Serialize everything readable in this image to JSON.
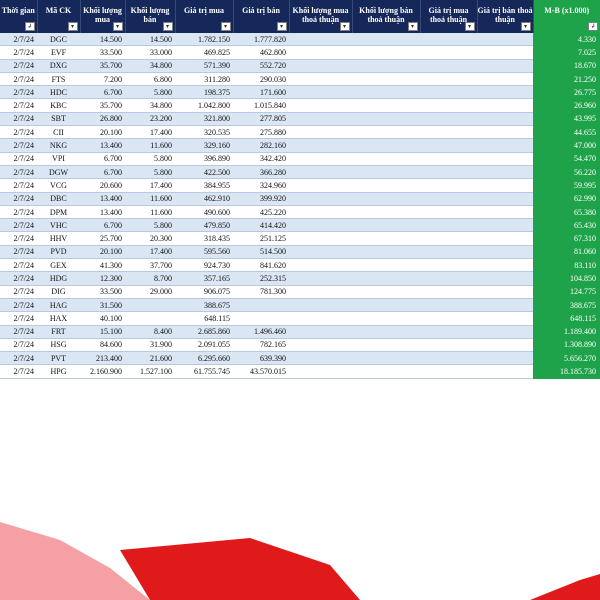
{
  "headers": {
    "time": "Thời gian",
    "ticker": "Mã CK",
    "buy_volume": "Khối lượng mua",
    "sell_volume": "Khối lượng bán",
    "buy_value": "Giá trị mua",
    "sell_value": "Giá trị bán",
    "buy_volume_deal": "Khối lượng mua thoả thuận",
    "sell_volume_deal": "Khối lượng bán thoả thuận",
    "buy_value_deal": "Giá trị mua thoả thuận",
    "sell_value_deal": "Giá trị bán thoả thuận",
    "mb": "M-B (x1.000)",
    "filter_glyph": "▾",
    "sort_glyph": "↲"
  },
  "rows": [
    {
      "date": "2/7/24",
      "ticker": "DGC",
      "buy_vol": "14.500",
      "sell_vol": "14.500",
      "buy_val": "1.782.150",
      "sell_val": "1.777.820",
      "mb": "4.330"
    },
    {
      "date": "2/7/24",
      "ticker": "EVF",
      "buy_vol": "33.500",
      "sell_vol": "33.000",
      "buy_val": "469.825",
      "sell_val": "462.800",
      "mb": "7.025"
    },
    {
      "date": "2/7/24",
      "ticker": "DXG",
      "buy_vol": "35.700",
      "sell_vol": "34.800",
      "buy_val": "571.390",
      "sell_val": "552.720",
      "mb": "18.670"
    },
    {
      "date": "2/7/24",
      "ticker": "FTS",
      "buy_vol": "7.200",
      "sell_vol": "6.800",
      "buy_val": "311.280",
      "sell_val": "290.030",
      "mb": "21.250"
    },
    {
      "date": "2/7/24",
      "ticker": "HDC",
      "buy_vol": "6.700",
      "sell_vol": "5.800",
      "buy_val": "198.375",
      "sell_val": "171.600",
      "mb": "26.775"
    },
    {
      "date": "2/7/24",
      "ticker": "KBC",
      "buy_vol": "35.700",
      "sell_vol": "34.800",
      "buy_val": "1.042.800",
      "sell_val": "1.015.840",
      "mb": "26.960"
    },
    {
      "date": "2/7/24",
      "ticker": "SBT",
      "buy_vol": "26.800",
      "sell_vol": "23.200",
      "buy_val": "321.800",
      "sell_val": "277.805",
      "mb": "43.995"
    },
    {
      "date": "2/7/24",
      "ticker": "CII",
      "buy_vol": "20.100",
      "sell_vol": "17.400",
      "buy_val": "320.535",
      "sell_val": "275.880",
      "mb": "44.655"
    },
    {
      "date": "2/7/24",
      "ticker": "NKG",
      "buy_vol": "13.400",
      "sell_vol": "11.600",
      "buy_val": "329.160",
      "sell_val": "282.160",
      "mb": "47.000"
    },
    {
      "date": "2/7/24",
      "ticker": "VPI",
      "buy_vol": "6.700",
      "sell_vol": "5.800",
      "buy_val": "396.890",
      "sell_val": "342.420",
      "mb": "54.470"
    },
    {
      "date": "2/7/24",
      "ticker": "DGW",
      "buy_vol": "6.700",
      "sell_vol": "5.800",
      "buy_val": "422.500",
      "sell_val": "366.280",
      "mb": "56.220"
    },
    {
      "date": "2/7/24",
      "ticker": "VCG",
      "buy_vol": "20.600",
      "sell_vol": "17.400",
      "buy_val": "384.955",
      "sell_val": "324.960",
      "mb": "59.995"
    },
    {
      "date": "2/7/24",
      "ticker": "DBC",
      "buy_vol": "13.400",
      "sell_vol": "11.600",
      "buy_val": "462.910",
      "sell_val": "399.920",
      "mb": "62.990"
    },
    {
      "date": "2/7/24",
      "ticker": "DPM",
      "buy_vol": "13.400",
      "sell_vol": "11.600",
      "buy_val": "490.600",
      "sell_val": "425.220",
      "mb": "65.380"
    },
    {
      "date": "2/7/24",
      "ticker": "VHC",
      "buy_vol": "6.700",
      "sell_vol": "5.800",
      "buy_val": "479.850",
      "sell_val": "414.420",
      "mb": "65.430"
    },
    {
      "date": "2/7/24",
      "ticker": "HHV",
      "buy_vol": "25.700",
      "sell_vol": "20.300",
      "buy_val": "318.435",
      "sell_val": "251.125",
      "mb": "67.310"
    },
    {
      "date": "2/7/24",
      "ticker": "PVD",
      "buy_vol": "20.100",
      "sell_vol": "17.400",
      "buy_val": "595.560",
      "sell_val": "514.500",
      "mb": "81.060"
    },
    {
      "date": "2/7/24",
      "ticker": "GEX",
      "buy_vol": "41.300",
      "sell_vol": "37.700",
      "buy_val": "924.730",
      "sell_val": "841.620",
      "mb": "83.110"
    },
    {
      "date": "2/7/24",
      "ticker": "HDG",
      "buy_vol": "12.300",
      "sell_vol": "8.700",
      "buy_val": "357.165",
      "sell_val": "252.315",
      "mb": "104.850"
    },
    {
      "date": "2/7/24",
      "ticker": "DIG",
      "buy_vol": "33.500",
      "sell_vol": "29.000",
      "buy_val": "906.075",
      "sell_val": "781.300",
      "mb": "124.775"
    },
    {
      "date": "2/7/24",
      "ticker": "HAG",
      "buy_vol": "31.500",
      "sell_vol": "",
      "buy_val": "388.675",
      "sell_val": "",
      "mb": "388.675"
    },
    {
      "date": "2/7/24",
      "ticker": "HAX",
      "buy_vol": "40.100",
      "sell_vol": "",
      "buy_val": "648.115",
      "sell_val": "",
      "mb": "648.115"
    },
    {
      "date": "2/7/24",
      "ticker": "FRT",
      "buy_vol": "15.100",
      "sell_vol": "8.400",
      "buy_val": "2.685.860",
      "sell_val": "1.496.460",
      "mb": "1.189.400"
    },
    {
      "date": "2/7/24",
      "ticker": "HSG",
      "buy_vol": "84.600",
      "sell_vol": "31.900",
      "buy_val": "2.091.055",
      "sell_val": "782.165",
      "mb": "1.308.890"
    },
    {
      "date": "2/7/24",
      "ticker": "PVT",
      "buy_vol": "213.400",
      "sell_vol": "21.600",
      "buy_val": "6.295.660",
      "sell_val": "639.390",
      "mb": "5.656.270"
    },
    {
      "date": "2/7/24",
      "ticker": "HPG",
      "buy_vol": "2.160.900",
      "sell_vol": "1.527.100",
      "buy_val": "61.755.745",
      "sell_val": "43.570.015",
      "mb": "18.185.730"
    }
  ],
  "colors": {
    "header_bg": "#16285a",
    "mb_green": "#1fa34a",
    "row_stripe": "#dbe6f4",
    "footer_red": "#e0191b",
    "footer_pink": "#f4a0a5"
  }
}
